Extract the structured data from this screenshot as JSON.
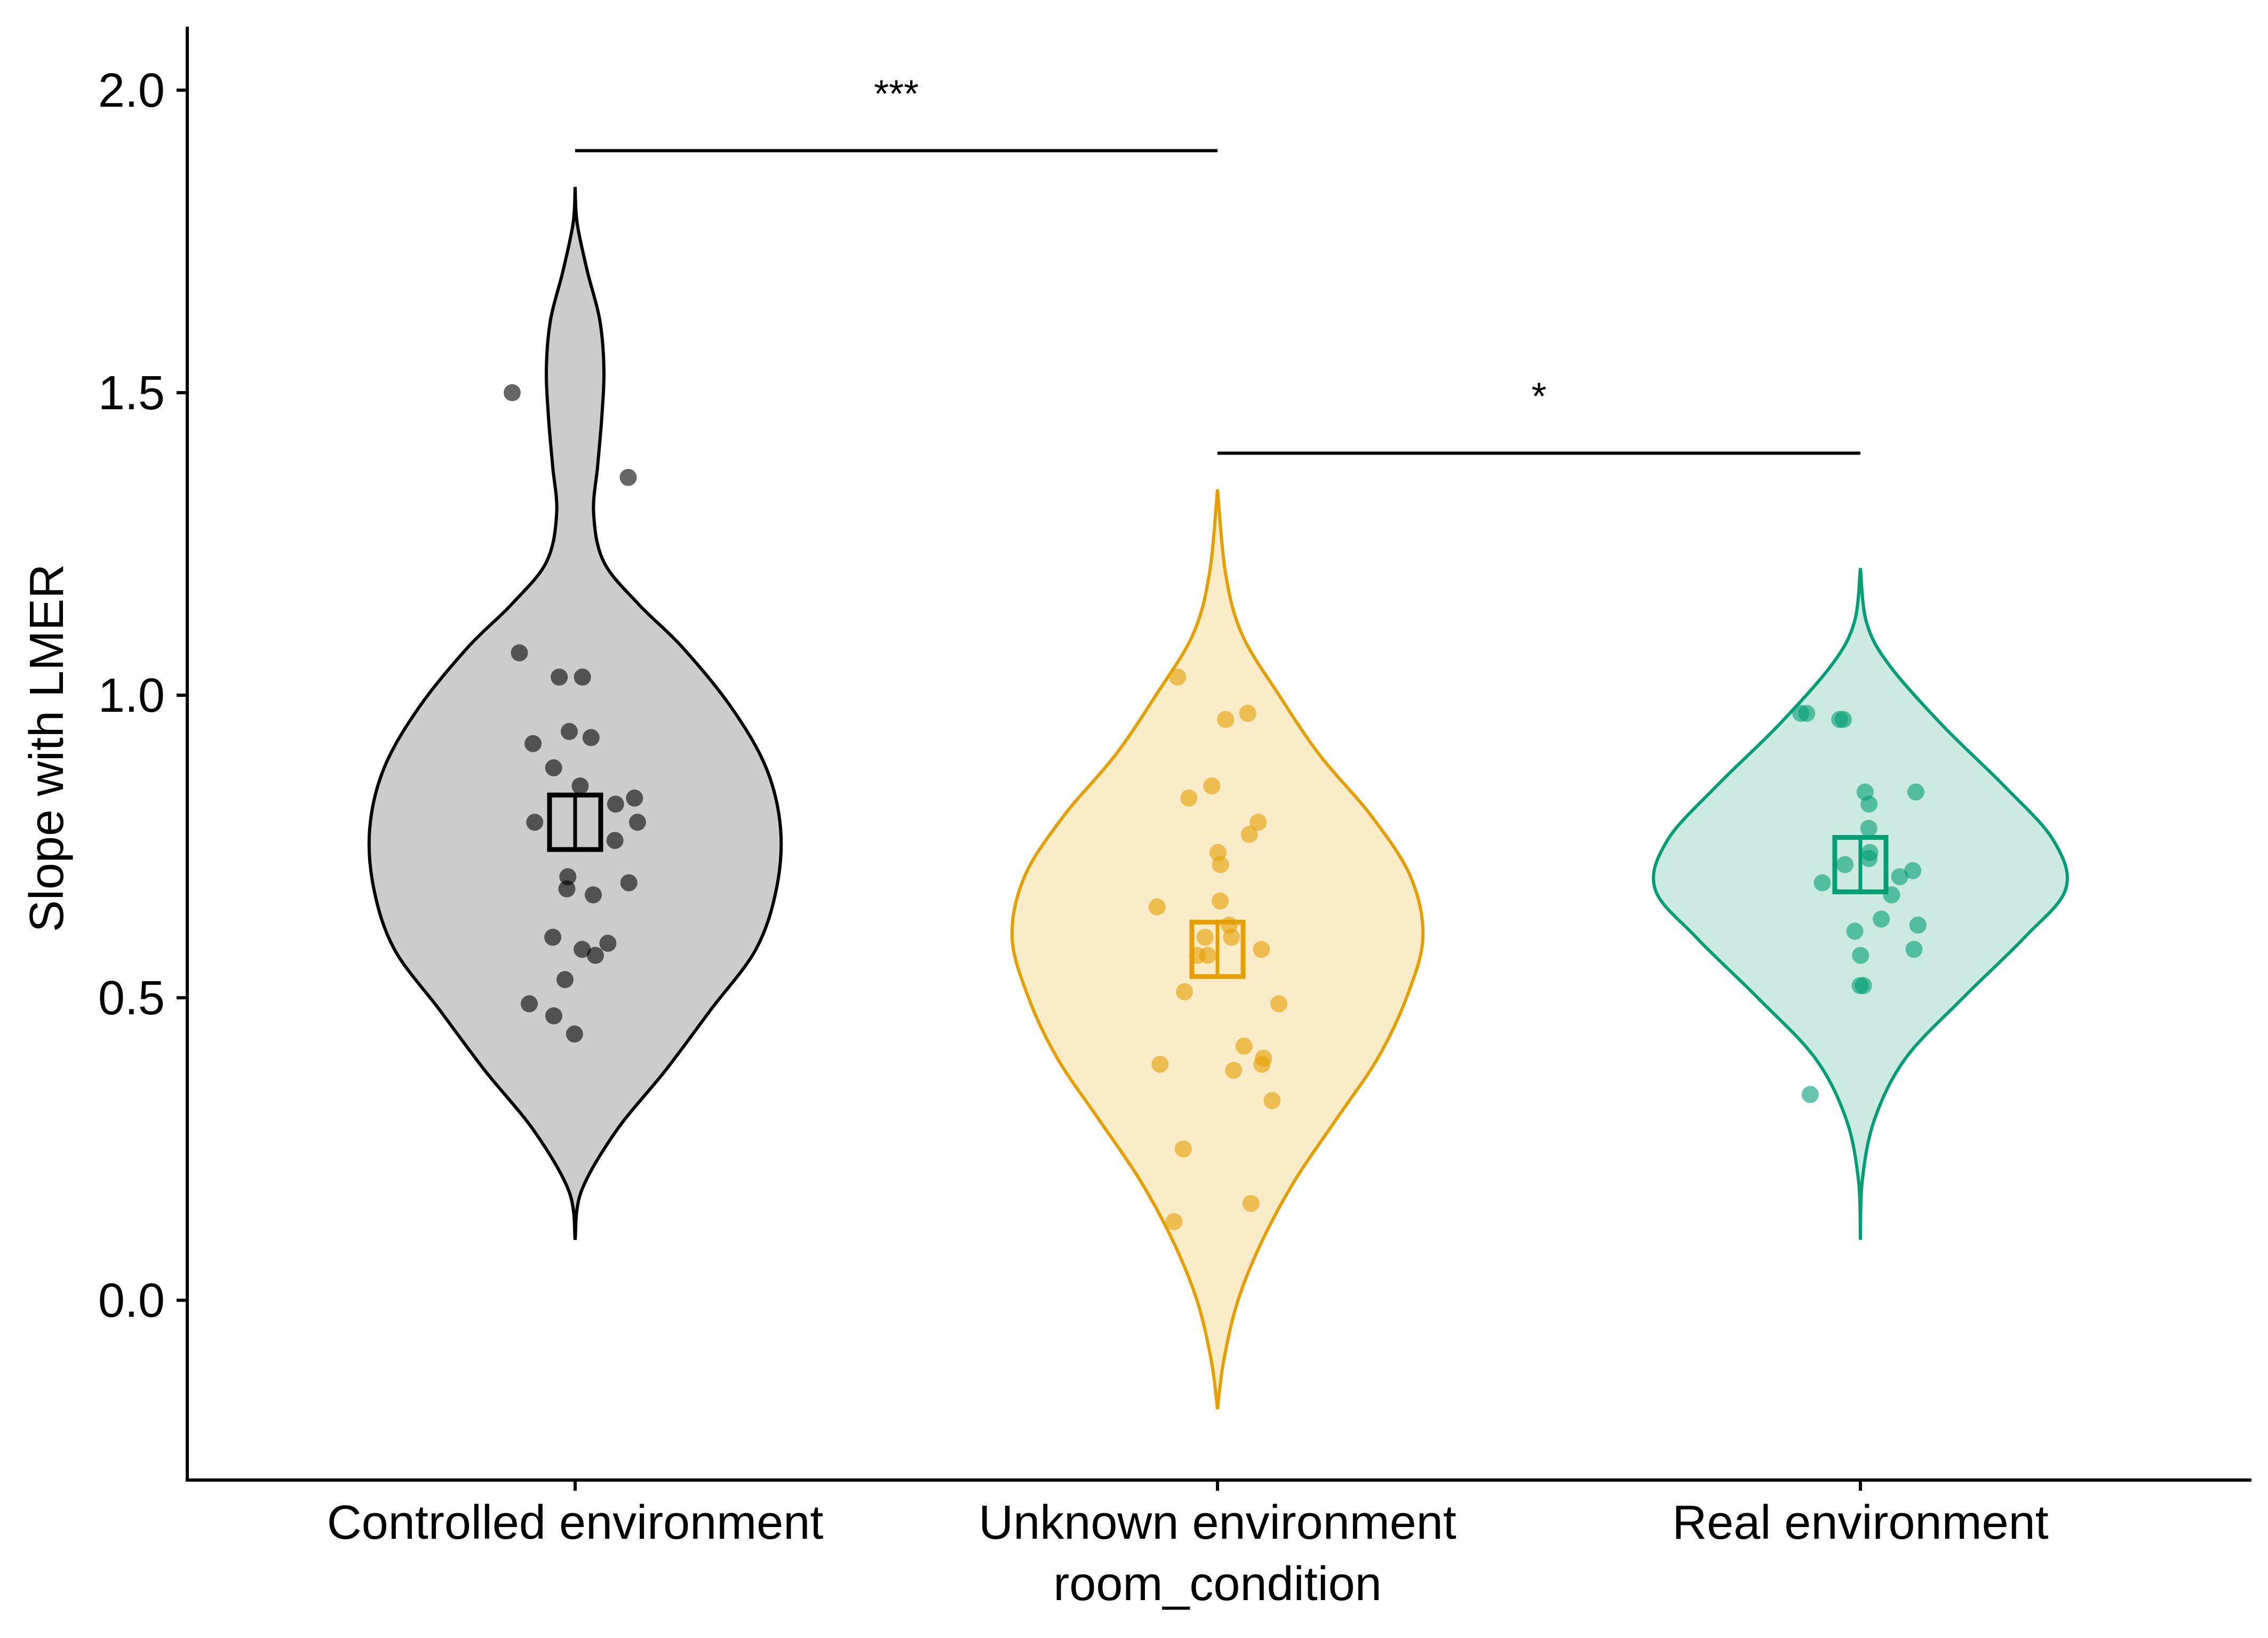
{
  "chart_data": {
    "type": "violin",
    "xlabel": "room_condition",
    "ylabel": "Slope with LMER",
    "ylim": [
      -0.29,
      2.11
    ],
    "yticks": [
      0.0,
      0.5,
      1.0,
      1.5,
      2.0
    ],
    "ytick_labels": [
      "0.0",
      "0.5",
      "1.0",
      "1.5",
      "2.0"
    ],
    "grid": false,
    "legend": "none",
    "categories": [
      "Controlled environment",
      "Unknown environment",
      "Real environment"
    ],
    "colors": {
      "Controlled environment": {
        "line": "#000000",
        "fill": "#cccccc"
      },
      "Unknown environment": {
        "line": "#e69f00",
        "fill": "#fbecc9"
      },
      "Real environment": {
        "line": "#009e73",
        "fill": "#cceae1"
      }
    },
    "series": [
      {
        "category": "Controlled environment",
        "mean": 0.79,
        "se": 0.045,
        "density": [
          [
            0.1,
            0.0
          ],
          [
            0.18,
            0.03
          ],
          [
            0.28,
            0.2
          ],
          [
            0.38,
            0.44
          ],
          [
            0.48,
            0.66
          ],
          [
            0.58,
            0.88
          ],
          [
            0.68,
            0.98
          ],
          [
            0.78,
            1.0
          ],
          [
            0.88,
            0.93
          ],
          [
            0.98,
            0.76
          ],
          [
            1.08,
            0.52
          ],
          [
            1.15,
            0.31
          ],
          [
            1.22,
            0.14
          ],
          [
            1.3,
            0.09
          ],
          [
            1.38,
            0.11
          ],
          [
            1.46,
            0.13
          ],
          [
            1.54,
            0.14
          ],
          [
            1.62,
            0.12
          ],
          [
            1.7,
            0.06
          ],
          [
            1.78,
            0.01
          ],
          [
            1.84,
            0.0
          ]
        ],
        "points": [
          1.5,
          1.36,
          1.07,
          1.03,
          1.03,
          0.94,
          0.93,
          0.92,
          0.88,
          0.85,
          0.83,
          0.82,
          0.79,
          0.79,
          0.76,
          0.7,
          0.69,
          0.68,
          0.67,
          0.6,
          0.59,
          0.58,
          0.57,
          0.53,
          0.49,
          0.47,
          0.44
        ]
      },
      {
        "category": "Unknown environment",
        "mean": 0.58,
        "se": 0.045,
        "density": [
          [
            -0.18,
            0.0
          ],
          [
            -0.1,
            0.03
          ],
          [
            0.0,
            0.1
          ],
          [
            0.1,
            0.22
          ],
          [
            0.2,
            0.38
          ],
          [
            0.3,
            0.58
          ],
          [
            0.4,
            0.78
          ],
          [
            0.5,
            0.92
          ],
          [
            0.6,
            1.0
          ],
          [
            0.7,
            0.94
          ],
          [
            0.8,
            0.75
          ],
          [
            0.9,
            0.5
          ],
          [
            1.0,
            0.3
          ],
          [
            1.1,
            0.12
          ],
          [
            1.2,
            0.04
          ],
          [
            1.34,
            0.0
          ]
        ],
        "points": [
          1.03,
          0.97,
          0.96,
          0.85,
          0.83,
          0.79,
          0.77,
          0.74,
          0.72,
          0.66,
          0.65,
          0.62,
          0.6,
          0.6,
          0.58,
          0.57,
          0.57,
          0.51,
          0.49,
          0.42,
          0.4,
          0.39,
          0.39,
          0.38,
          0.33,
          0.25,
          0.16,
          0.13
        ]
      },
      {
        "category": "Real environment",
        "mean": 0.72,
        "se": 0.045,
        "density": [
          [
            0.1,
            0.0
          ],
          [
            0.2,
            0.01
          ],
          [
            0.3,
            0.07
          ],
          [
            0.4,
            0.22
          ],
          [
            0.5,
            0.5
          ],
          [
            0.6,
            0.8
          ],
          [
            0.68,
            1.0
          ],
          [
            0.76,
            0.94
          ],
          [
            0.85,
            0.7
          ],
          [
            0.95,
            0.4
          ],
          [
            1.05,
            0.14
          ],
          [
            1.12,
            0.03
          ],
          [
            1.21,
            0.0
          ]
        ],
        "points": [
          0.97,
          0.97,
          0.96,
          0.96,
          0.84,
          0.84,
          0.82,
          0.78,
          0.74,
          0.73,
          0.72,
          0.71,
          0.7,
          0.69,
          0.67,
          0.63,
          0.62,
          0.61,
          0.58,
          0.57,
          0.52,
          0.52,
          0.34
        ]
      }
    ],
    "significance": [
      {
        "from": "Controlled environment",
        "to": "Unknown environment",
        "label": "***",
        "y": 1.9
      },
      {
        "from": "Unknown environment",
        "to": "Real environment",
        "label": "*",
        "y": 1.4
      }
    ]
  }
}
